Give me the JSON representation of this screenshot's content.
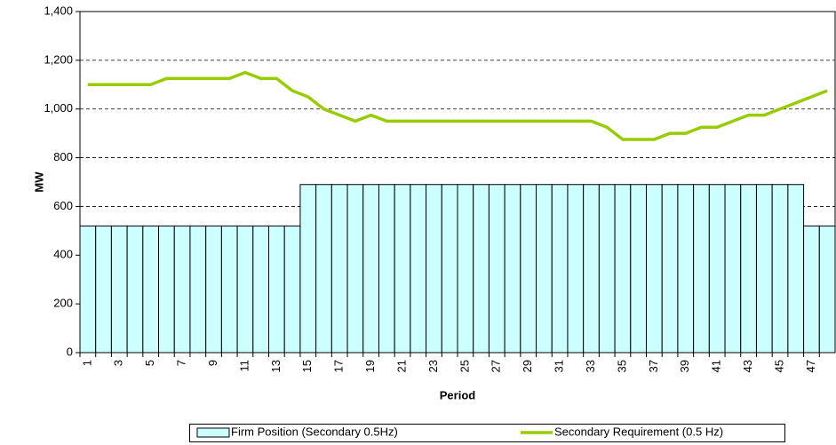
{
  "chart_data": {
    "type": "bar",
    "x_label": "Period",
    "y_label": "MW",
    "categories": [
      1,
      null,
      3,
      null,
      5,
      null,
      7,
      null,
      9,
      null,
      11,
      null,
      13,
      null,
      15,
      null,
      17,
      null,
      19,
      null,
      21,
      null,
      23,
      null,
      25,
      null,
      27,
      null,
      29,
      null,
      31,
      null,
      33,
      null,
      35,
      null,
      37,
      null,
      39,
      null,
      41,
      null,
      43,
      null,
      45,
      null,
      47,
      null
    ],
    "series": [
      {
        "name": "Firm Position (Secondary 0.5Hz)",
        "type": "bar",
        "color": "#ccffff",
        "values": [
          520,
          520,
          520,
          520,
          520,
          520,
          520,
          520,
          520,
          520,
          520,
          520,
          520,
          520,
          690,
          690,
          690,
          690,
          690,
          690,
          690,
          690,
          690,
          690,
          690,
          690,
          690,
          690,
          690,
          690,
          690,
          690,
          690,
          690,
          690,
          690,
          690,
          690,
          690,
          690,
          690,
          690,
          690,
          690,
          690,
          690,
          520,
          520
        ]
      },
      {
        "name": "Secondary Requirement (0.5 Hz)",
        "type": "line",
        "color": "#99cc00",
        "values": [
          1100,
          1100,
          1100,
          1100,
          1100,
          1125,
          1125,
          1125,
          1125,
          1125,
          1150,
          1125,
          1125,
          1075,
          1050,
          1000,
          975,
          950,
          975,
          950,
          950,
          950,
          950,
          950,
          950,
          950,
          950,
          950,
          950,
          950,
          950,
          950,
          950,
          925,
          875,
          875,
          875,
          900,
          900,
          925,
          925,
          950,
          975,
          975,
          1000,
          1025,
          1050,
          1075
        ]
      }
    ],
    "ylim": [
      0,
      1400
    ],
    "yticks": [
      0,
      200,
      400,
      600,
      800,
      {
        "value": 1000,
        "label": "1,000"
      },
      {
        "value": 1200,
        "label": "1,200"
      },
      {
        "value": 1400,
        "label": "1,400"
      }
    ],
    "grid": true,
    "legend": "bottom"
  }
}
